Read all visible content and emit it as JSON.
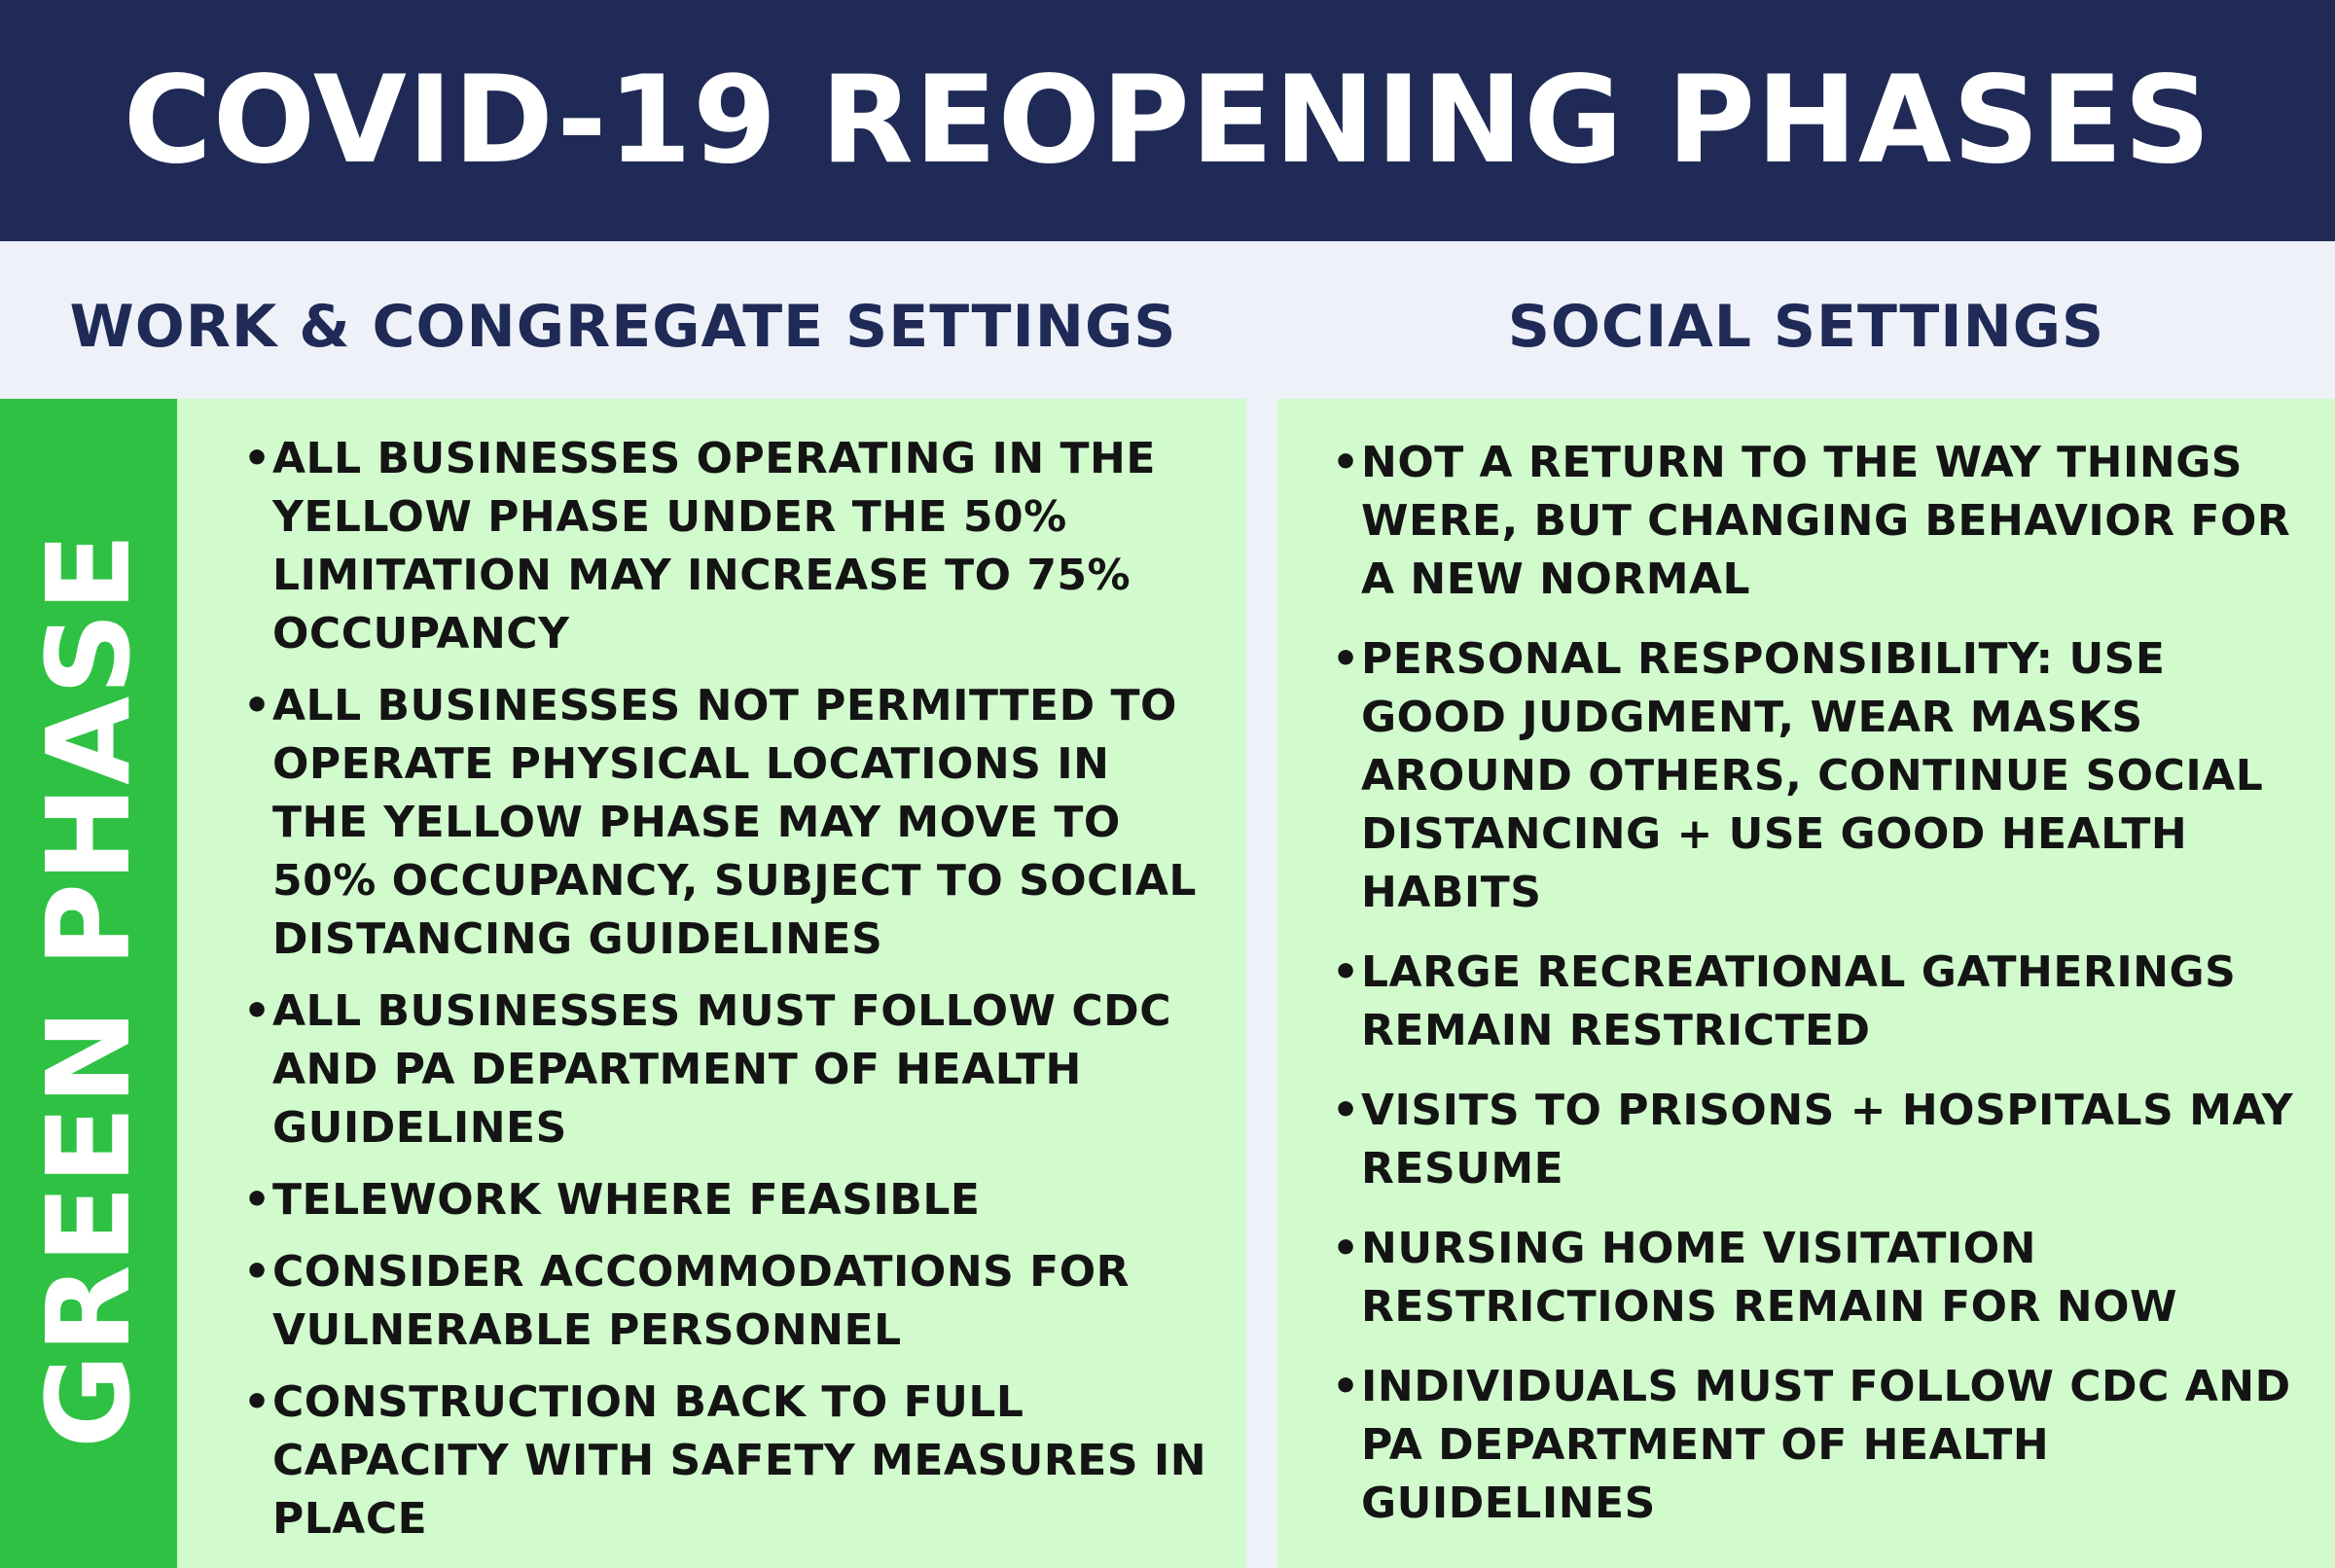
{
  "title": "COVID-19 REOPENING PHASES",
  "columns": {
    "left_header": "WORK & CONGREGATE SETTINGS",
    "right_header": "SOCIAL SETTINGS"
  },
  "phase_label": "GREEN PHASE",
  "bullet_glyph": "•",
  "work_settings": [
    "ALL BUSINESSES OPERATING IN THE YELLOW PHASE UNDER THE 50% LIMITATION MAY INCREASE TO 75% OCCUPANCY",
    "ALL BUSINESSES NOT PERMITTED TO OPERATE PHYSICAL LOCATIONS IN THE YELLOW PHASE MAY MOVE TO 50% OCCUPANCY, SUBJECT TO SOCIAL DISTANCING GUIDELINES",
    "ALL BUSINESSES MUST FOLLOW CDC AND PA DEPARTMENT OF HEALTH GUIDELINES",
    "TELEWORK WHERE FEASIBLE",
    "CONSIDER ACCOMMODATIONS FOR VULNERABLE PERSONNEL",
    "CONSTRUCTION BACK TO FULL CAPACITY WITH SAFETY MEASURES IN PLACE"
  ],
  "social_settings": [
    "NOT A RETURN TO THE WAY THINGS WERE, BUT CHANGING BEHAVIOR FOR A NEW NORMAL",
    "PERSONAL RESPONSIBILITY: USE GOOD JUDGMENT, WEAR MASKS AROUND OTHERS, CONTINUE SOCIAL DISTANCING + USE GOOD HEALTH HABITS",
    "LARGE RECREATIONAL GATHERINGS REMAIN RESTRICTED",
    "VISITS TO PRISONS + HOSPITALS MAY RESUME",
    "NURSING HOME VISITATION RESTRICTIONS REMAIN FOR NOW",
    "INDIVIDUALS MUST FOLLOW CDC AND PA DEPARTMENT OF HEALTH GUIDELINES"
  ],
  "colors": {
    "navy": "#1f2a56",
    "green_band": "#2fc144",
    "panel_green": "#d1fbcd",
    "header_bg": "#eef1f8",
    "text": "#141414"
  }
}
